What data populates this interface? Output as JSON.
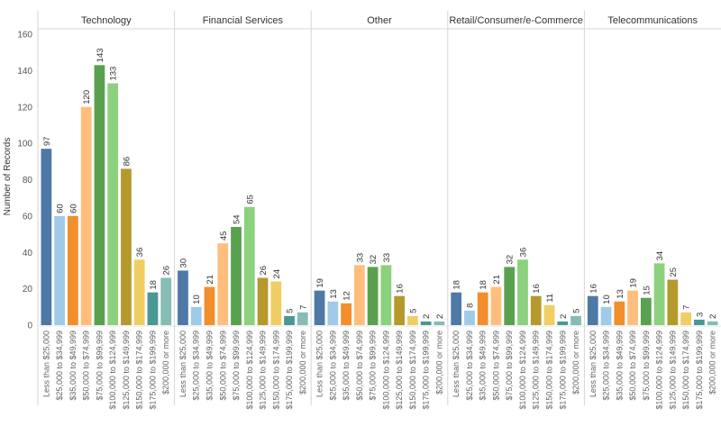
{
  "chart_data": {
    "type": "bar",
    "ylabel": "Number of Records",
    "ylim": [
      0,
      160
    ],
    "yticks": [
      0,
      20,
      40,
      60,
      80,
      100,
      120,
      140,
      160
    ],
    "categories": [
      "Less than $25,000",
      "$25,000 to $34,999",
      "$35,000 to $49,999",
      "$50,000 to $74,999",
      "$75,000 to $99,999",
      "$100,000 to $124,999",
      "$125,000 to $149,999",
      "$150,000 to $174,999",
      "$175,000 to $199,999",
      "$200,000 or more"
    ],
    "colors": [
      "#4e79a7",
      "#a0cbe8",
      "#f28e2b",
      "#ffbe7d",
      "#59a14f",
      "#8cd17d",
      "#b6992d",
      "#f1ce63",
      "#499894",
      "#86bcb6"
    ],
    "panels": [
      {
        "name": "Technology",
        "values": [
          97,
          60,
          60,
          120,
          143,
          133,
          86,
          36,
          18,
          26
        ]
      },
      {
        "name": "Financial Services",
        "values": [
          30,
          10,
          21,
          45,
          54,
          65,
          26,
          24,
          5,
          7
        ]
      },
      {
        "name": "Other",
        "values": [
          19,
          13,
          12,
          33,
          32,
          33,
          16,
          5,
          2,
          2
        ]
      },
      {
        "name": "Retail/Consumer/e-Commerce",
        "values": [
          18,
          8,
          18,
          21,
          32,
          36,
          16,
          11,
          2,
          5
        ]
      },
      {
        "name": "Telecommunications",
        "values": [
          16,
          10,
          13,
          19,
          15,
          34,
          25,
          7,
          3,
          2
        ]
      }
    ],
    "grid": false
  }
}
